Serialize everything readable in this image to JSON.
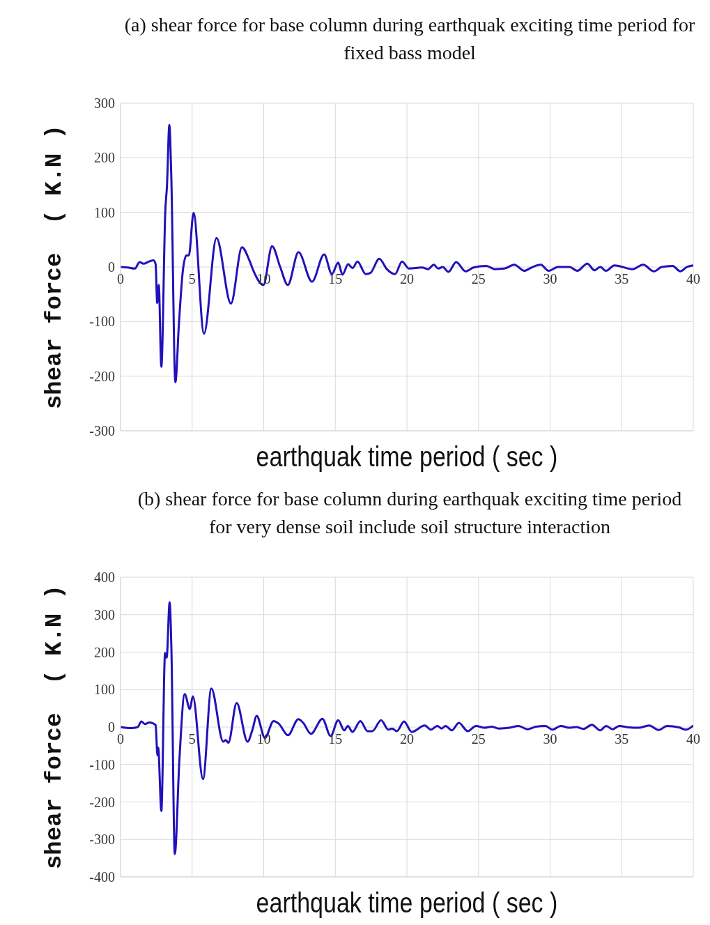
{
  "chart_data": [
    {
      "type": "line",
      "title": "(a) shear force for base column  during earthquak  exciting time period for fixed bass model",
      "xlabel": "earthquak time period ( sec )",
      "ylabel": "shear force  ( K.N )",
      "x": [
        0,
        0.5,
        1,
        1.33,
        1.6,
        2,
        2.3,
        2.45,
        2.56,
        2.67,
        2.85,
        3.13,
        3.24,
        3.41,
        3.54,
        3.83,
        4.08,
        4.36,
        4.6,
        4.77,
        5.1,
        5.83,
        6.7,
        7.71,
        8.48,
        9.0,
        9.3,
        9.98,
        10.58,
        11.15,
        11.68,
        12.43,
        13.37,
        14.22,
        14.76,
        15.2,
        15.5,
        15.9,
        16.2,
        16.55,
        17.12,
        17.45,
        18.07,
        18.6,
        19.17,
        19.66,
        20.15,
        21.06,
        21.47,
        21.88,
        22.2,
        22.5,
        22.9,
        23.44,
        24.1,
        24.65,
        25.55,
        26.13,
        26.8,
        27.5,
        28.2,
        28.7,
        29.35,
        29.9,
        30.55,
        31.35,
        31.9,
        32.6,
        33.1,
        33.5,
        33.9,
        34.5,
        35.75,
        36.5,
        37.25,
        37.8,
        38.55,
        39.1,
        39.55,
        40
      ],
      "series": [
        {
          "color": "#2211bb",
          "values": [
            0,
            -1,
            -3,
            9,
            6,
            10,
            12,
            5,
            -66,
            -33,
            -183,
            105,
            147,
            260,
            171,
            -211,
            -103,
            -5,
            21,
            21,
            99,
            -122,
            53,
            -67,
            36,
            12,
            -8,
            -33,
            38,
            0,
            -33,
            27,
            -27,
            23,
            -13,
            8,
            -14,
            5,
            -2,
            10,
            -13,
            -11,
            15,
            -4,
            -13,
            10,
            -3,
            -1,
            -4,
            4,
            -3,
            0,
            -9,
            9,
            -8,
            -1,
            2,
            -4,
            -3,
            4,
            -7,
            -1,
            4,
            -7,
            0,
            0,
            -7,
            6,
            -6,
            0,
            -7,
            3,
            -4,
            4,
            -8,
            0,
            2,
            -8,
            0,
            3
          ]
        }
      ],
      "xlim": [
        0,
        40
      ],
      "xticks": [
        0,
        5,
        10,
        15,
        20,
        25,
        30,
        35,
        40
      ],
      "ylim": [
        -300,
        300
      ],
      "yticks": [
        -300,
        -200,
        -100,
        0,
        100,
        200,
        300
      ],
      "grid": true
    },
    {
      "type": "line",
      "title": "(b) shear force for base column  during earthquak  exciting time period for very dense soil include soil structure interaction",
      "xlabel": "earthquak time period ( sec )",
      "ylabel": "shear force  ( K.N )",
      "x": [
        0,
        0.73,
        1.2,
        1.45,
        1.7,
        2.0,
        2.26,
        2.45,
        2.58,
        2.63,
        2.85,
        3.11,
        3.22,
        3.43,
        3.55,
        3.79,
        4.11,
        4.48,
        4.84,
        5.05,
        5.76,
        6.34,
        7.17,
        7.35,
        7.53,
        8.11,
        8.87,
        9.2,
        9.51,
        10.08,
        10.69,
        11.05,
        11.69,
        12.42,
        12.74,
        13.3,
        14.1,
        14.67,
        15.2,
        15.63,
        15.87,
        16.2,
        16.75,
        17.25,
        17.58,
        18.2,
        18.7,
        18.97,
        19.3,
        19.8,
        20.33,
        21.25,
        21.67,
        22.13,
        22.42,
        22.7,
        23.13,
        23.63,
        24.25,
        24.83,
        25.42,
        25.92,
        26.42,
        27.17,
        27.8,
        28.42,
        29.0,
        29.67,
        30.17,
        30.75,
        31.33,
        31.83,
        32.33,
        32.92,
        33.5,
        33.92,
        34.37,
        34.83,
        35.5,
        36.17,
        36.92,
        37.58,
        38.17,
        39.0,
        39.5,
        40
      ],
      "series": [
        {
          "color": "#2211bb",
          "values": [
            0,
            -3,
            0,
            15,
            8,
            12,
            10,
            5,
            -76,
            -55,
            -224,
            197,
            185,
            333,
            212,
            -339,
            -88,
            88,
            48,
            82,
            -139,
            103,
            -39,
            -35,
            -42,
            64,
            -39,
            -9,
            30,
            -29,
            16,
            9,
            -22,
            21,
            12,
            -18,
            22,
            -24,
            18,
            -9,
            3,
            -13,
            16,
            -11,
            -11,
            18,
            -7,
            -4,
            -11,
            15,
            -13,
            4,
            -7,
            3,
            -4,
            3,
            -9,
            11,
            -11,
            3,
            -2,
            1,
            -4,
            -2,
            3,
            -6,
            1,
            3,
            -7,
            3,
            -2,
            0,
            -5,
            6,
            -9,
            3,
            -6,
            3,
            -1,
            -2,
            4,
            -8,
            3,
            -1,
            -7,
            4
          ]
        }
      ],
      "xlim": [
        0,
        40
      ],
      "xticks": [
        0,
        5,
        10,
        15,
        20,
        25,
        30,
        35,
        40
      ],
      "ylim": [
        -400,
        400
      ],
      "yticks": [
        -400,
        -300,
        -200,
        -100,
        0,
        100,
        200,
        300,
        400
      ],
      "grid": true
    }
  ]
}
